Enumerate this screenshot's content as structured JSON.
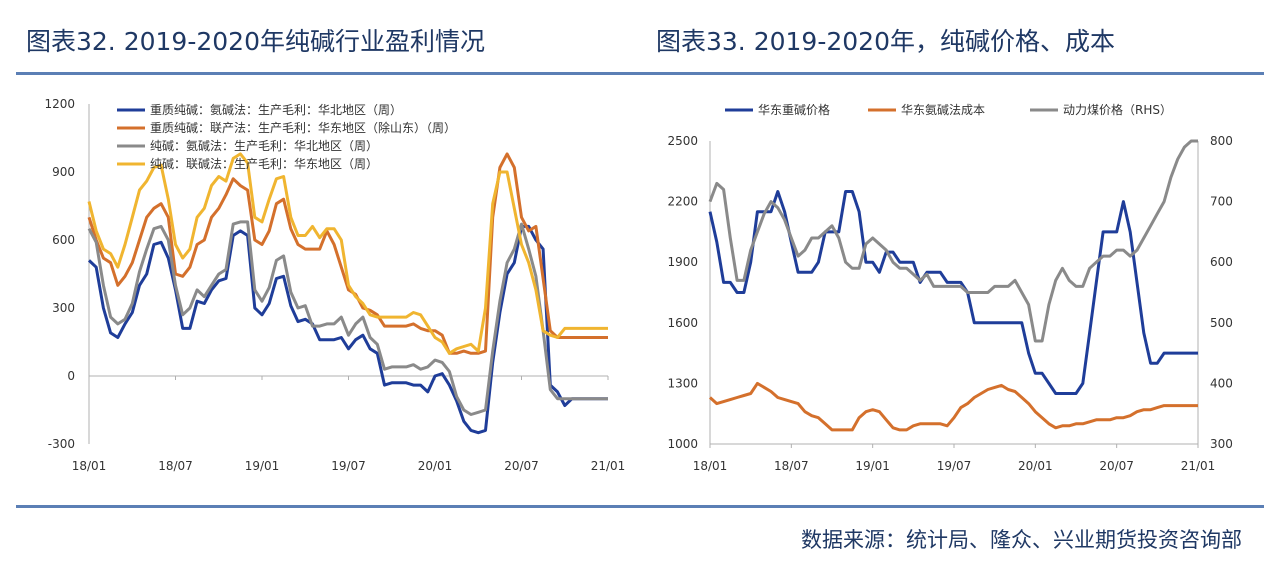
{
  "title_left": "图表32. 2019-2020年纯碱行业盈利情况",
  "title_right": "图表33. 2019-2020年，纯碱价格、成本",
  "source": "数据来源：统计局、隆众、兴业期货投资咨询部",
  "colors": {
    "blue": "#1f3d99",
    "orange": "#d4702c",
    "gray": "#8a8a8a",
    "yellow": "#f0b530",
    "axis": "#b0b0b0"
  },
  "chart_data": [
    {
      "type": "line",
      "title": "图表32. 2019-2020年纯碱行业盈利情况",
      "ylim": [
        -300,
        1200
      ],
      "yticks": [
        -300,
        0,
        300,
        600,
        900,
        1200
      ],
      "x_range": [
        0,
        36
      ],
      "xtick_labels": [
        "18/01",
        "18/07",
        "19/01",
        "19/07",
        "20/01",
        "20/07",
        "21/01"
      ],
      "legend_position": "top-left",
      "series": [
        {
          "name": "重质纯碱：氨碱法：生产毛利：华北地区（周）",
          "color": "#1f3d99",
          "x": [
            0,
            0.5,
            1,
            1.5,
            2,
            2.5,
            3,
            3.5,
            4,
            4.5,
            5,
            5.5,
            6,
            6.5,
            7,
            7.5,
            8,
            8.5,
            9,
            9.5,
            10,
            10.5,
            11,
            11.5,
            12,
            12.5,
            13,
            13.5,
            14,
            14.5,
            15,
            15.5,
            16,
            16.5,
            17,
            17.5,
            18,
            18.5,
            19,
            19.5,
            20,
            20.5,
            21,
            21.5,
            22,
            22.5,
            23,
            23.5,
            24,
            24.5,
            25,
            25.5,
            26,
            26.5,
            27,
            27.5,
            28,
            28.5,
            29,
            29.5,
            30,
            30.5,
            31,
            31.5,
            32,
            32.5,
            33,
            33.5,
            34,
            34.5,
            35,
            35.5,
            36
          ],
          "y": [
            510,
            480,
            300,
            190,
            170,
            230,
            280,
            400,
            450,
            580,
            590,
            520,
            380,
            210,
            210,
            330,
            320,
            380,
            420,
            430,
            620,
            640,
            620,
            300,
            270,
            320,
            430,
            440,
            310,
            240,
            250,
            230,
            160,
            160,
            160,
            170,
            120,
            160,
            180,
            120,
            100,
            -40,
            -30,
            -30,
            -30,
            -40,
            -40,
            -70,
            0,
            10,
            -40,
            -110,
            -200,
            -240,
            -250,
            -240,
            60,
            280,
            450,
            500,
            660,
            660,
            600,
            560,
            -40,
            -70,
            -130,
            -100,
            -100,
            -100,
            -100,
            -100,
            -100
          ]
        },
        {
          "name": "重质纯碱：联产法：生产毛利：华东地区（除山东）（周）",
          "color": "#d4702c",
          "x": [
            0,
            0.5,
            1,
            1.5,
            2,
            2.5,
            3,
            3.5,
            4,
            4.5,
            5,
            5.5,
            6,
            6.5,
            7,
            7.5,
            8,
            8.5,
            9,
            9.5,
            10,
            10.5,
            11,
            11.5,
            12,
            12.5,
            13,
            13.5,
            14,
            14.5,
            15,
            15.5,
            16,
            16.5,
            17,
            17.5,
            18,
            18.5,
            19,
            19.5,
            20,
            20.5,
            21,
            21.5,
            22,
            22.5,
            23,
            23.5,
            24,
            24.5,
            25,
            25.5,
            26,
            26.5,
            27,
            27.5,
            28,
            28.5,
            29,
            29.5,
            30,
            30.5,
            31,
            31.5,
            32,
            32.5,
            33,
            33.5,
            34,
            34.5,
            35,
            35.5,
            36
          ],
          "y": [
            700,
            600,
            520,
            500,
            400,
            440,
            500,
            600,
            700,
            740,
            760,
            700,
            450,
            440,
            480,
            580,
            600,
            700,
            740,
            800,
            870,
            840,
            820,
            600,
            580,
            640,
            760,
            780,
            650,
            580,
            560,
            560,
            560,
            640,
            580,
            480,
            380,
            360,
            300,
            290,
            270,
            220,
            220,
            220,
            220,
            230,
            210,
            200,
            200,
            180,
            100,
            100,
            110,
            100,
            100,
            110,
            700,
            920,
            980,
            920,
            700,
            640,
            660,
            430,
            200,
            170,
            170,
            170,
            170,
            170,
            170,
            170,
            170
          ]
        },
        {
          "name": "纯碱：氨碱法：生产毛利：华北地区（周）",
          "color": "#8a8a8a",
          "x": [
            0,
            0.5,
            1,
            1.5,
            2,
            2.5,
            3,
            3.5,
            4,
            4.5,
            5,
            5.5,
            6,
            6.5,
            7,
            7.5,
            8,
            8.5,
            9,
            9.5,
            10,
            10.5,
            11,
            11.5,
            12,
            12.5,
            13,
            13.5,
            14,
            14.5,
            15,
            15.5,
            16,
            16.5,
            17,
            17.5,
            18,
            18.5,
            19,
            19.5,
            20,
            20.5,
            21,
            21.5,
            22,
            22.5,
            23,
            23.5,
            24,
            24.5,
            25,
            25.5,
            26,
            26.5,
            27,
            27.5,
            28,
            28.5,
            29,
            29.5,
            30,
            30.5,
            31,
            31.5,
            32,
            32.5,
            33,
            33.5,
            34,
            34.5,
            35,
            35.5,
            36
          ],
          "y": [
            650,
            590,
            400,
            260,
            230,
            250,
            320,
            460,
            560,
            650,
            660,
            600,
            400,
            270,
            300,
            380,
            350,
            400,
            450,
            470,
            670,
            680,
            680,
            380,
            330,
            390,
            510,
            530,
            370,
            300,
            310,
            220,
            220,
            230,
            230,
            260,
            180,
            230,
            260,
            170,
            140,
            30,
            40,
            40,
            40,
            50,
            30,
            40,
            70,
            60,
            20,
            -90,
            -150,
            -170,
            -160,
            -150,
            110,
            330,
            500,
            560,
            670,
            560,
            440,
            200,
            -60,
            -100,
            -100,
            -100,
            -100,
            -100,
            -100,
            -100,
            -100
          ]
        },
        {
          "name": "纯碱：联碱法：生产毛利：华东地区（周）",
          "color": "#f0b530",
          "x": [
            0,
            0.5,
            1,
            1.5,
            2,
            2.5,
            3,
            3.5,
            4,
            4.5,
            5,
            5.5,
            6,
            6.5,
            7,
            7.5,
            8,
            8.5,
            9,
            9.5,
            10,
            10.5,
            11,
            11.5,
            12,
            12.5,
            13,
            13.5,
            14,
            14.5,
            15,
            15.5,
            16,
            16.5,
            17,
            17.5,
            18,
            18.5,
            19,
            19.5,
            20,
            20.5,
            21,
            21.5,
            22,
            22.5,
            23,
            23.5,
            24,
            24.5,
            25,
            25.5,
            26,
            26.5,
            27,
            27.5,
            28,
            28.5,
            29,
            29.5,
            30,
            30.5,
            31,
            31.5,
            32,
            32.5,
            33,
            33.5,
            34,
            34.5,
            35,
            35.5,
            36
          ],
          "y": [
            770,
            640,
            560,
            540,
            480,
            580,
            700,
            820,
            860,
            920,
            930,
            780,
            580,
            520,
            560,
            700,
            740,
            840,
            880,
            860,
            960,
            980,
            940,
            700,
            680,
            780,
            870,
            880,
            700,
            620,
            620,
            660,
            610,
            650,
            650,
            600,
            400,
            350,
            320,
            270,
            260,
            260,
            260,
            260,
            260,
            280,
            270,
            220,
            170,
            150,
            100,
            120,
            130,
            140,
            110,
            300,
            760,
            900,
            900,
            740,
            580,
            500,
            380,
            200,
            180,
            170,
            210,
            210,
            210,
            210,
            210,
            210,
            210
          ]
        }
      ]
    },
    {
      "type": "line",
      "title": "图表33. 2019-2020年，纯碱价格、成本",
      "ylim": [
        1000,
        2500
      ],
      "yticks": [
        1000,
        1300,
        1600,
        1900,
        2200,
        2500
      ],
      "y2lim": [
        300,
        800
      ],
      "y2ticks": [
        300,
        400,
        500,
        600,
        700,
        800
      ],
      "y2label": "RHS",
      "x_range": [
        0,
        36
      ],
      "xtick_labels": [
        "18/01",
        "18/07",
        "19/01",
        "19/07",
        "20/01",
        "20/07",
        "21/01"
      ],
      "legend_position": "top",
      "series": [
        {
          "name": "华东重碱价格",
          "color": "#1f3d99",
          "axis": "left",
          "x": [
            0,
            0.5,
            1,
            1.5,
            2,
            2.5,
            3,
            3.5,
            4,
            4.5,
            5,
            5.5,
            6,
            6.5,
            7,
            7.5,
            8,
            8.5,
            9,
            9.5,
            10,
            10.5,
            11,
            11.5,
            12,
            12.5,
            13,
            13.5,
            14,
            14.5,
            15,
            15.5,
            16,
            16.5,
            17,
            17.5,
            18,
            18.5,
            19,
            19.5,
            20,
            20.5,
            21,
            21.5,
            22,
            22.5,
            23,
            23.5,
            24,
            24.5,
            25,
            25.5,
            26,
            26.5,
            27,
            27.5,
            28,
            28.5,
            29,
            29.5,
            30,
            30.5,
            31,
            31.5,
            32,
            32.5,
            33,
            33.5,
            34,
            34.5,
            35,
            35.5,
            36
          ],
          "y": [
            2150,
            2000,
            1800,
            1800,
            1750,
            1750,
            1900,
            2150,
            2150,
            2150,
            2250,
            2150,
            2000,
            1850,
            1850,
            1850,
            1900,
            2050,
            2050,
            2050,
            2250,
            2250,
            2150,
            1900,
            1900,
            1850,
            1950,
            1950,
            1900,
            1900,
            1900,
            1800,
            1850,
            1850,
            1850,
            1800,
            1800,
            1800,
            1750,
            1600,
            1600,
            1600,
            1600,
            1600,
            1600,
            1600,
            1600,
            1450,
            1350,
            1350,
            1300,
            1250,
            1250,
            1250,
            1250,
            1300,
            1550,
            1800,
            2050,
            2050,
            2050,
            2200,
            2050,
            1800,
            1550,
            1400,
            1400,
            1450,
            1450,
            1450,
            1450,
            1450,
            1450
          ]
        },
        {
          "name": "华东氨碱法成本",
          "color": "#d4702c",
          "axis": "left",
          "x": [
            0,
            0.5,
            1,
            1.5,
            2,
            2.5,
            3,
            3.5,
            4,
            4.5,
            5,
            5.5,
            6,
            6.5,
            7,
            7.5,
            8,
            8.5,
            9,
            9.5,
            10,
            10.5,
            11,
            11.5,
            12,
            12.5,
            13,
            13.5,
            14,
            14.5,
            15,
            15.5,
            16,
            16.5,
            17,
            17.5,
            18,
            18.5,
            19,
            19.5,
            20,
            20.5,
            21,
            21.5,
            22,
            22.5,
            23,
            23.5,
            24,
            24.5,
            25,
            25.5,
            26,
            26.5,
            27,
            27.5,
            28,
            28.5,
            29,
            29.5,
            30,
            30.5,
            31,
            31.5,
            32,
            32.5,
            33,
            33.5,
            34,
            34.5,
            35,
            35.5,
            36
          ],
          "y": [
            1230,
            1200,
            1210,
            1220,
            1230,
            1240,
            1250,
            1300,
            1280,
            1260,
            1230,
            1220,
            1210,
            1200,
            1160,
            1140,
            1130,
            1100,
            1070,
            1070,
            1070,
            1070,
            1130,
            1160,
            1170,
            1160,
            1120,
            1080,
            1070,
            1070,
            1090,
            1100,
            1100,
            1100,
            1100,
            1090,
            1130,
            1180,
            1200,
            1230,
            1250,
            1270,
            1280,
            1290,
            1270,
            1260,
            1230,
            1200,
            1160,
            1130,
            1100,
            1080,
            1090,
            1090,
            1100,
            1100,
            1110,
            1120,
            1120,
            1120,
            1130,
            1130,
            1140,
            1160,
            1170,
            1170,
            1180,
            1190,
            1190,
            1190,
            1190,
            1190,
            1190
          ]
        },
        {
          "name": "动力煤价格（RHS）",
          "color": "#8a8a8a",
          "axis": "right",
          "x": [
            0,
            0.5,
            1,
            1.5,
            2,
            2.5,
            3,
            3.5,
            4,
            4.5,
            5,
            5.5,
            6,
            6.5,
            7,
            7.5,
            8,
            8.5,
            9,
            9.5,
            10,
            10.5,
            11,
            11.5,
            12,
            12.5,
            13,
            13.5,
            14,
            14.5,
            15,
            15.5,
            16,
            16.5,
            17,
            17.5,
            18,
            18.5,
            19,
            19.5,
            20,
            20.5,
            21,
            21.5,
            22,
            22.5,
            23,
            23.5,
            24,
            24.5,
            25,
            25.5,
            26,
            26.5,
            27,
            27.5,
            28,
            28.5,
            29,
            29.5,
            30,
            30.5,
            31,
            31.5,
            32,
            32.5,
            33,
            33.5,
            34,
            34.5,
            35,
            35.5,
            36
          ],
          "y": [
            700,
            730,
            720,
            640,
            570,
            570,
            620,
            650,
            680,
            700,
            690,
            670,
            640,
            610,
            620,
            640,
            640,
            650,
            660,
            640,
            600,
            590,
            590,
            630,
            640,
            630,
            620,
            600,
            590,
            590,
            580,
            570,
            580,
            560,
            560,
            560,
            560,
            560,
            550,
            550,
            550,
            550,
            560,
            560,
            560,
            570,
            550,
            530,
            470,
            470,
            530,
            570,
            590,
            570,
            560,
            560,
            590,
            600,
            610,
            610,
            620,
            620,
            610,
            620,
            640,
            660,
            680,
            700,
            740,
            770,
            790,
            800,
            800
          ]
        }
      ]
    }
  ]
}
